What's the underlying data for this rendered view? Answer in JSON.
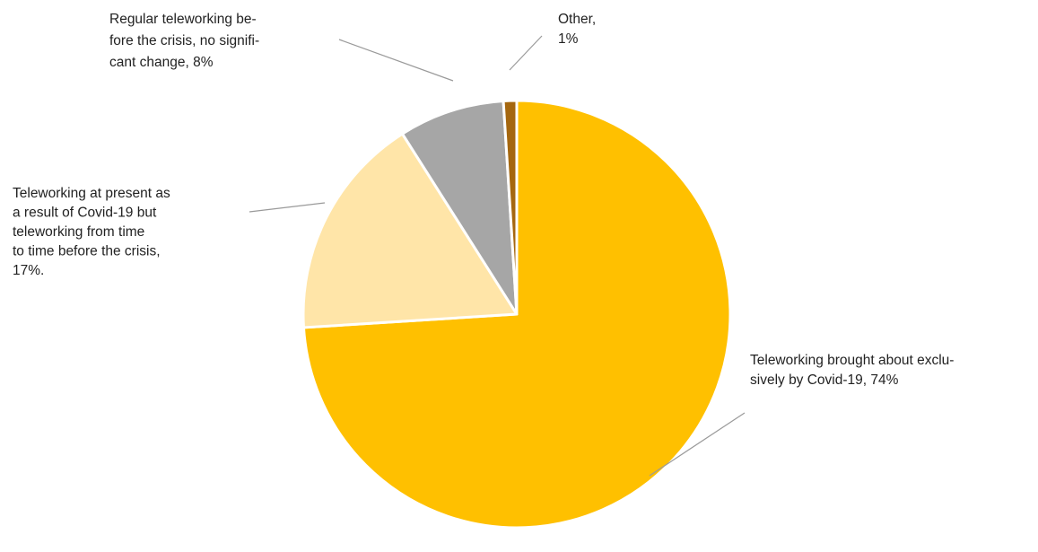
{
  "chart_data": {
    "type": "pie",
    "slices": [
      {
        "name": "Teleworking brought about exclusively by Covid-19",
        "value": 74,
        "color": "#FFC000",
        "label_lines": [
          "Teleworking brought about exclu-",
          "sively by Covid-19, 74%"
        ]
      },
      {
        "name": "Teleworking at present as a result of Covid-19 but teleworking from time to time before the crisis",
        "value": 17,
        "color": "#FFE5A8",
        "label_lines": [
          "Teleworking at present as",
          "a result of Covid-19 but",
          "teleworking from time",
          "to time before the crisis,",
          "17%."
        ]
      },
      {
        "name": "Regular teleworking before the crisis, no significant change",
        "value": 8,
        "color": "#A6A6A6",
        "label_lines": [
          "Regular teleworking be-",
          "fore the crisis, no signifi-",
          "cant change, 8%"
        ]
      },
      {
        "name": "Other",
        "value": 1,
        "color": "#A5670F",
        "label_lines": [
          "Other,",
          "1%"
        ]
      }
    ]
  }
}
